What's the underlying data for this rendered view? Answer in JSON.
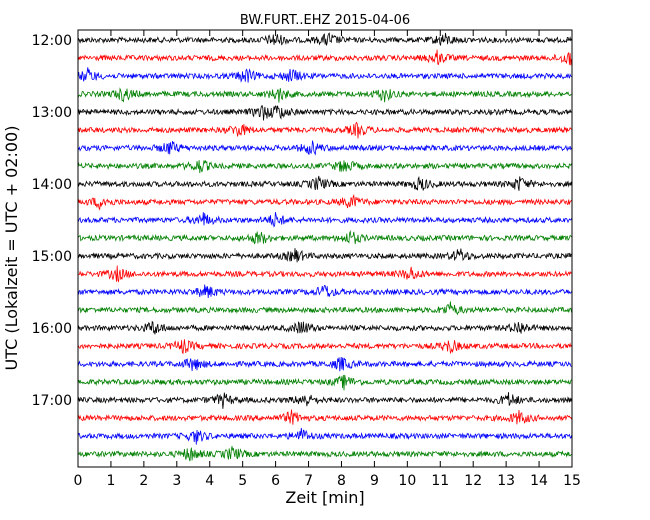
{
  "chart_data": {
    "type": "line",
    "title": "BW.FURT..EHZ 2015-04-06",
    "xlabel": "Zeit  [min]",
    "ylabel": "UTC (Lokalzeit = UTC + 02:00)",
    "xlim": [
      0,
      15
    ],
    "x_ticks": [
      "0",
      "1",
      "2",
      "3",
      "4",
      "5",
      "6",
      "7",
      "8",
      "9",
      "10",
      "11",
      "12",
      "13",
      "14",
      "15"
    ],
    "y_ticks": [
      {
        "label": "12:00",
        "trace": 0
      },
      {
        "label": "13:00",
        "trace": 4
      },
      {
        "label": "14:00",
        "trace": 8
      },
      {
        "label": "15:00",
        "trace": 12
      },
      {
        "label": "16:00",
        "trace": 16
      },
      {
        "label": "17:00",
        "trace": 20
      }
    ],
    "trace_interval_minutes": 15,
    "trace_count": 24,
    "colors": [
      "#000000",
      "#ff0000",
      "#0000ff",
      "#008000"
    ],
    "grid": false,
    "traces": [
      {
        "start": "12:00",
        "events": [
          6.0,
          7.6,
          11.1
        ]
      },
      {
        "start": "12:15",
        "events": [
          10.9,
          14.9
        ]
      },
      {
        "start": "12:30",
        "events": [
          0.3,
          5.1,
          6.5
        ]
      },
      {
        "start": "12:45",
        "events": [
          1.4,
          6.1,
          9.3
        ]
      },
      {
        "start": "13:00",
        "events": [
          5.6,
          6.1
        ]
      },
      {
        "start": "13:15",
        "events": [
          4.9,
          8.5
        ]
      },
      {
        "start": "13:30",
        "events": [
          2.8,
          7.1
        ]
      },
      {
        "start": "13:45",
        "events": [
          3.7,
          8.1
        ]
      },
      {
        "start": "14:00",
        "events": [
          7.3,
          10.4,
          13.4
        ]
      },
      {
        "start": "14:15",
        "events": [
          0.7,
          8.3
        ]
      },
      {
        "start": "14:30",
        "events": [
          3.8,
          6.0
        ]
      },
      {
        "start": "14:45",
        "events": [
          5.5,
          8.3
        ]
      },
      {
        "start": "15:00",
        "events": [
          6.6,
          11.6
        ]
      },
      {
        "start": "15:15",
        "events": [
          1.2,
          10.1
        ]
      },
      {
        "start": "15:30",
        "events": [
          3.9,
          7.5
        ]
      },
      {
        "start": "15:45",
        "events": [
          11.3
        ]
      },
      {
        "start": "16:00",
        "events": [
          2.3,
          6.8,
          13.4
        ]
      },
      {
        "start": "16:15",
        "events": [
          3.2,
          11.3
        ]
      },
      {
        "start": "16:30",
        "events": [
          3.5,
          8.0
        ]
      },
      {
        "start": "16:45",
        "events": [
          8.1
        ]
      },
      {
        "start": "17:00",
        "events": [
          4.4,
          6.9,
          13.1
        ]
      },
      {
        "start": "17:15",
        "events": [
          6.5,
          13.4
        ]
      },
      {
        "start": "17:30",
        "events": [
          3.6,
          6.8
        ]
      },
      {
        "start": "17:45",
        "events": [
          3.4,
          4.7
        ]
      }
    ]
  }
}
